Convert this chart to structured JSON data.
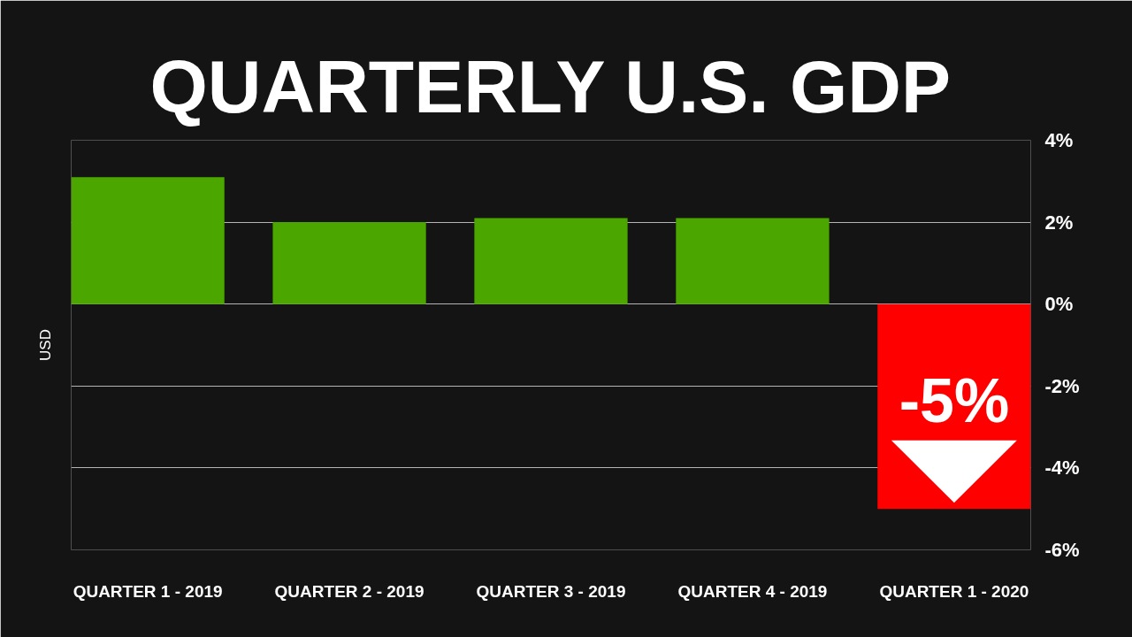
{
  "chart_data": {
    "type": "bar",
    "title": "QUARTERLY U.S. GDP",
    "ylabel": "USD",
    "categories": [
      "QUARTER 1 - 2019",
      "QUARTER 2 - 2019",
      "QUARTER 3 - 2019",
      "QUARTER 4 - 2019",
      "QUARTER 1 - 2020"
    ],
    "values": [
      3.1,
      2.0,
      2.1,
      2.1,
      -5
    ],
    "colors": [
      "#4ca600",
      "#4ca600",
      "#4ca600",
      "#4ca600",
      "#ff0000"
    ],
    "value_labels": [
      null,
      null,
      null,
      null,
      "-5%"
    ],
    "ylim": [
      -6,
      4
    ],
    "yticks": [
      {
        "value": 4,
        "label": "4%"
      },
      {
        "value": 2,
        "label": "2%"
      },
      {
        "value": 0,
        "label": "0%"
      },
      {
        "value": -2,
        "label": "-2%"
      },
      {
        "value": -4,
        "label": "-4%"
      },
      {
        "value": -6,
        "label": "-6%"
      }
    ],
    "grid": "y"
  }
}
